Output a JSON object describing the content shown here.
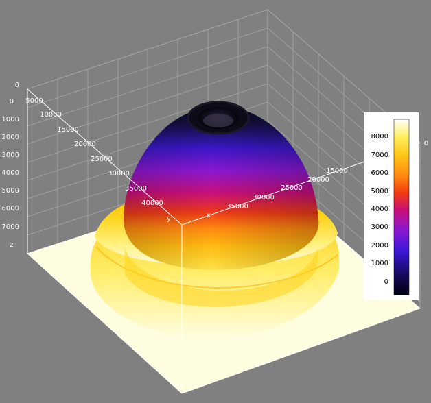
{
  "chart_data": {
    "type": "surface3d",
    "description_colormap": "black-blue-purple-red-orange-yellow-white",
    "colors": {
      "background": "#808080",
      "floor": "#fffde0",
      "grid": "#b8b8b8",
      "box_edge": "#ffffff"
    },
    "axes": {
      "x": {
        "label": "x",
        "ticks": [
          "15000",
          "20000",
          "25000",
          "30000",
          "35000"
        ]
      },
      "y": {
        "label": "y",
        "ticks": [
          "5000",
          "10000",
          "15000",
          "20000",
          "25000",
          "30000",
          "35000",
          "40000"
        ]
      },
      "z": {
        "label": "z",
        "ticks": [
          "0",
          "0",
          "1000",
          "2000",
          "3000",
          "4000",
          "5000",
          "6000",
          "7000"
        ]
      }
    },
    "colorbar": {
      "ticks": [
        "8000",
        "7000",
        "6000",
        "5000",
        "4000",
        "3000",
        "2000",
        "1000",
        "0"
      ],
      "range": [
        -500,
        8500
      ],
      "side_label": "0"
    },
    "surface": {
      "shape": "dome with flat brim, central crater at top",
      "z_top_crater_rim": 0,
      "z_dome_base": 7000,
      "z_brim": 7800,
      "z_floor": 8500
    }
  }
}
